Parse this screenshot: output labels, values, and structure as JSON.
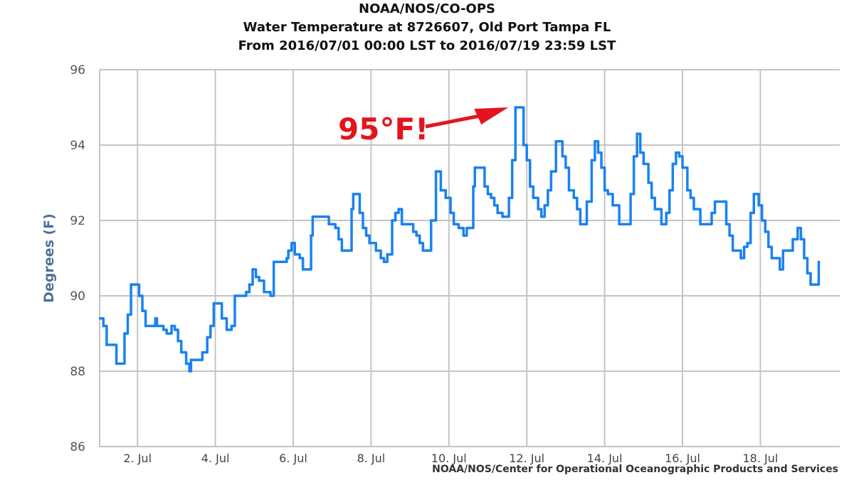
{
  "chart_data": {
    "type": "line",
    "title": "NOAA/NOS/CO-OPS",
    "subtitle_1": "Water Temperature at 8726607, Old Port Tampa FL",
    "subtitle_2": "From 2016/07/01 00:00 LST to 2016/07/19 23:59 LST",
    "xlabel": "",
    "ylabel": "Degrees (F)",
    "ylim": [
      86,
      96
    ],
    "xlim_hours": [
      0,
      456
    ],
    "y_ticks": [
      "86",
      "88",
      "90",
      "92",
      "94",
      "96"
    ],
    "x_ticks": [
      {
        "label": "2. Jul",
        "hour": 24
      },
      {
        "label": "4. Jul",
        "hour": 72
      },
      {
        "label": "6. Jul",
        "hour": 120
      },
      {
        "label": "8. Jul",
        "hour": 168
      },
      {
        "label": "10. Jul",
        "hour": 216
      },
      {
        "label": "12. Jul",
        "hour": 264
      },
      {
        "label": "14. Jul",
        "hour": 312
      },
      {
        "label": "16. Jul",
        "hour": 360
      },
      {
        "label": "18. Jul",
        "hour": 408
      }
    ],
    "grid": true,
    "series": [
      {
        "name": "Water Temperature",
        "color": "#1a82f0",
        "x_hours": [
          1,
          3,
          5,
          9,
          11,
          14,
          16,
          18,
          20,
          23,
          25,
          27,
          29,
          34,
          35,
          36,
          40,
          42,
          45,
          47,
          49,
          51,
          54,
          56,
          57,
          60,
          64,
          67,
          69,
          71,
          74,
          76,
          79,
          82,
          84,
          88,
          91,
          93,
          95,
          97,
          99,
          102,
          106,
          108,
          113,
          116,
          117,
          119,
          121,
          124,
          126,
          129,
          131,
          132,
          140,
          142,
          146,
          148,
          150,
          154,
          156,
          157,
          159,
          161,
          163,
          165,
          167,
          171,
          174,
          176,
          178,
          181,
          183,
          185,
          187,
          192,
          194,
          196,
          198,
          200,
          203,
          205,
          208,
          210,
          211,
          214,
          217,
          219,
          222,
          225,
          227,
          229,
          231,
          232,
          235,
          238,
          240,
          242,
          244,
          246,
          249,
          251,
          253,
          255,
          257,
          260,
          262,
          264,
          266,
          268,
          271,
          273,
          275,
          277,
          279,
          282,
          284,
          286,
          288,
          290,
          293,
          295,
          297,
          300,
          301,
          304,
          306,
          308,
          310,
          312,
          314,
          317,
          321,
          325,
          328,
          330,
          332,
          334,
          336,
          339,
          341,
          343,
          345,
          347,
          350,
          352,
          354,
          356,
          358,
          360,
          363,
          365,
          367,
          371,
          376,
          378,
          380,
          385,
          387,
          389,
          391,
          393,
          396,
          398,
          400,
          402,
          404,
          407,
          409,
          411,
          413,
          415,
          418,
          420,
          422,
          426,
          428,
          431,
          433,
          435,
          437,
          439,
          442,
          444
        ],
        "values": [
          89.4,
          89.2,
          88.7,
          88.7,
          88.2,
          88.2,
          89.0,
          89.5,
          90.3,
          90.3,
          90.0,
          89.6,
          89.2,
          89.2,
          89.4,
          89.2,
          89.1,
          89.0,
          89.2,
          89.1,
          88.8,
          88.5,
          88.2,
          88.0,
          88.3,
          88.3,
          88.5,
          88.9,
          89.2,
          89.8,
          89.8,
          89.4,
          89.1,
          89.2,
          90.0,
          90.0,
          90.1,
          90.3,
          90.7,
          90.5,
          90.4,
          90.1,
          90.0,
          90.9,
          90.9,
          91.0,
          91.2,
          91.4,
          91.1,
          91.0,
          90.7,
          90.7,
          91.6,
          92.1,
          92.1,
          91.9,
          91.8,
          91.5,
          91.2,
          91.2,
          92.3,
          92.7,
          92.7,
          92.2,
          91.8,
          91.6,
          91.4,
          91.2,
          91.0,
          90.9,
          91.1,
          92.0,
          92.2,
          92.3,
          91.9,
          91.9,
          91.7,
          91.6,
          91.4,
          91.2,
          91.2,
          92.0,
          93.3,
          93.3,
          92.8,
          92.6,
          92.2,
          91.9,
          91.8,
          91.6,
          91.8,
          91.8,
          92.9,
          93.4,
          93.4,
          92.9,
          92.7,
          92.6,
          92.4,
          92.2,
          92.1,
          92.1,
          92.6,
          93.6,
          95.0,
          95.0,
          94.0,
          93.6,
          92.9,
          92.6,
          92.3,
          92.1,
          92.4,
          92.8,
          93.3,
          94.1,
          94.1,
          93.7,
          93.4,
          92.8,
          92.6,
          92.3,
          91.9,
          91.9,
          92.5,
          93.6,
          94.1,
          93.8,
          93.4,
          92.8,
          92.7,
          92.4,
          91.9,
          91.9,
          92.7,
          93.7,
          94.3,
          93.8,
          93.5,
          93.0,
          92.6,
          92.3,
          92.3,
          91.9,
          92.2,
          92.8,
          93.5,
          93.8,
          93.7,
          93.4,
          92.8,
          92.6,
          92.3,
          91.9,
          91.9,
          92.2,
          92.5,
          92.5,
          91.9,
          91.6,
          91.2,
          91.2,
          91.0,
          91.3,
          91.4,
          92.2,
          92.7,
          92.4,
          92.0,
          91.7,
          91.3,
          91.0,
          91.0,
          90.7,
          91.2,
          91.2,
          91.5,
          91.8,
          91.5,
          91.0,
          90.6,
          90.3,
          90.3,
          90.9
        ]
      }
    ],
    "annotation": {
      "text": "95°F!",
      "color": "#e3151c",
      "points_to_hour": 257,
      "points_to_value": 95.0
    },
    "credits": "NOAA/NOS/Center for Operational Oceanographic Products and Services"
  }
}
